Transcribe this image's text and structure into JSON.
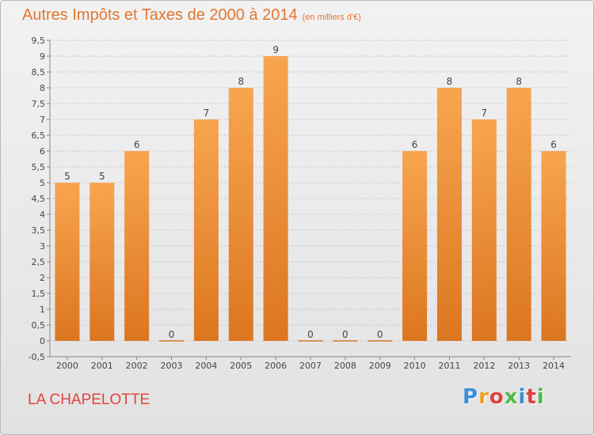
{
  "title": "Autres Impôts et Taxes de 2000 à 2014",
  "unit": "(en milliers d'€)",
  "commune": "LA CHAPELOTTE",
  "logo": "Proxiti",
  "colors": {
    "bar_top": "#f8a550",
    "bar_bottom": "#dc7620",
    "title": "#e2762f",
    "commune": "#e2433f"
  },
  "chart_data": {
    "type": "bar",
    "title": "Autres Impôts et Taxes de 2000 à 2014",
    "categories": [
      "2000",
      "2001",
      "2002",
      "2003",
      "2004",
      "2005",
      "2006",
      "2007",
      "2008",
      "2009",
      "2010",
      "2011",
      "2012",
      "2013",
      "2014"
    ],
    "values": [
      5,
      5,
      6,
      0,
      7,
      8,
      9,
      0,
      0,
      0,
      6,
      8,
      7,
      8,
      6
    ],
    "ylim": [
      -0.5,
      9.5
    ],
    "yticks": [
      "-0,5",
      "0",
      "0,5",
      "1",
      "1,5",
      "2",
      "2,5",
      "3",
      "3,5",
      "4",
      "4,5",
      "5",
      "5,5",
      "6",
      "6,5",
      "7",
      "7,5",
      "8",
      "8,5",
      "9",
      "9,5"
    ],
    "ytick_values": [
      -0.5,
      0,
      0.5,
      1,
      1.5,
      2,
      2.5,
      3,
      3.5,
      4,
      4.5,
      5,
      5.5,
      6,
      6.5,
      7,
      7.5,
      8,
      8.5,
      9,
      9.5
    ],
    "grid": true
  }
}
